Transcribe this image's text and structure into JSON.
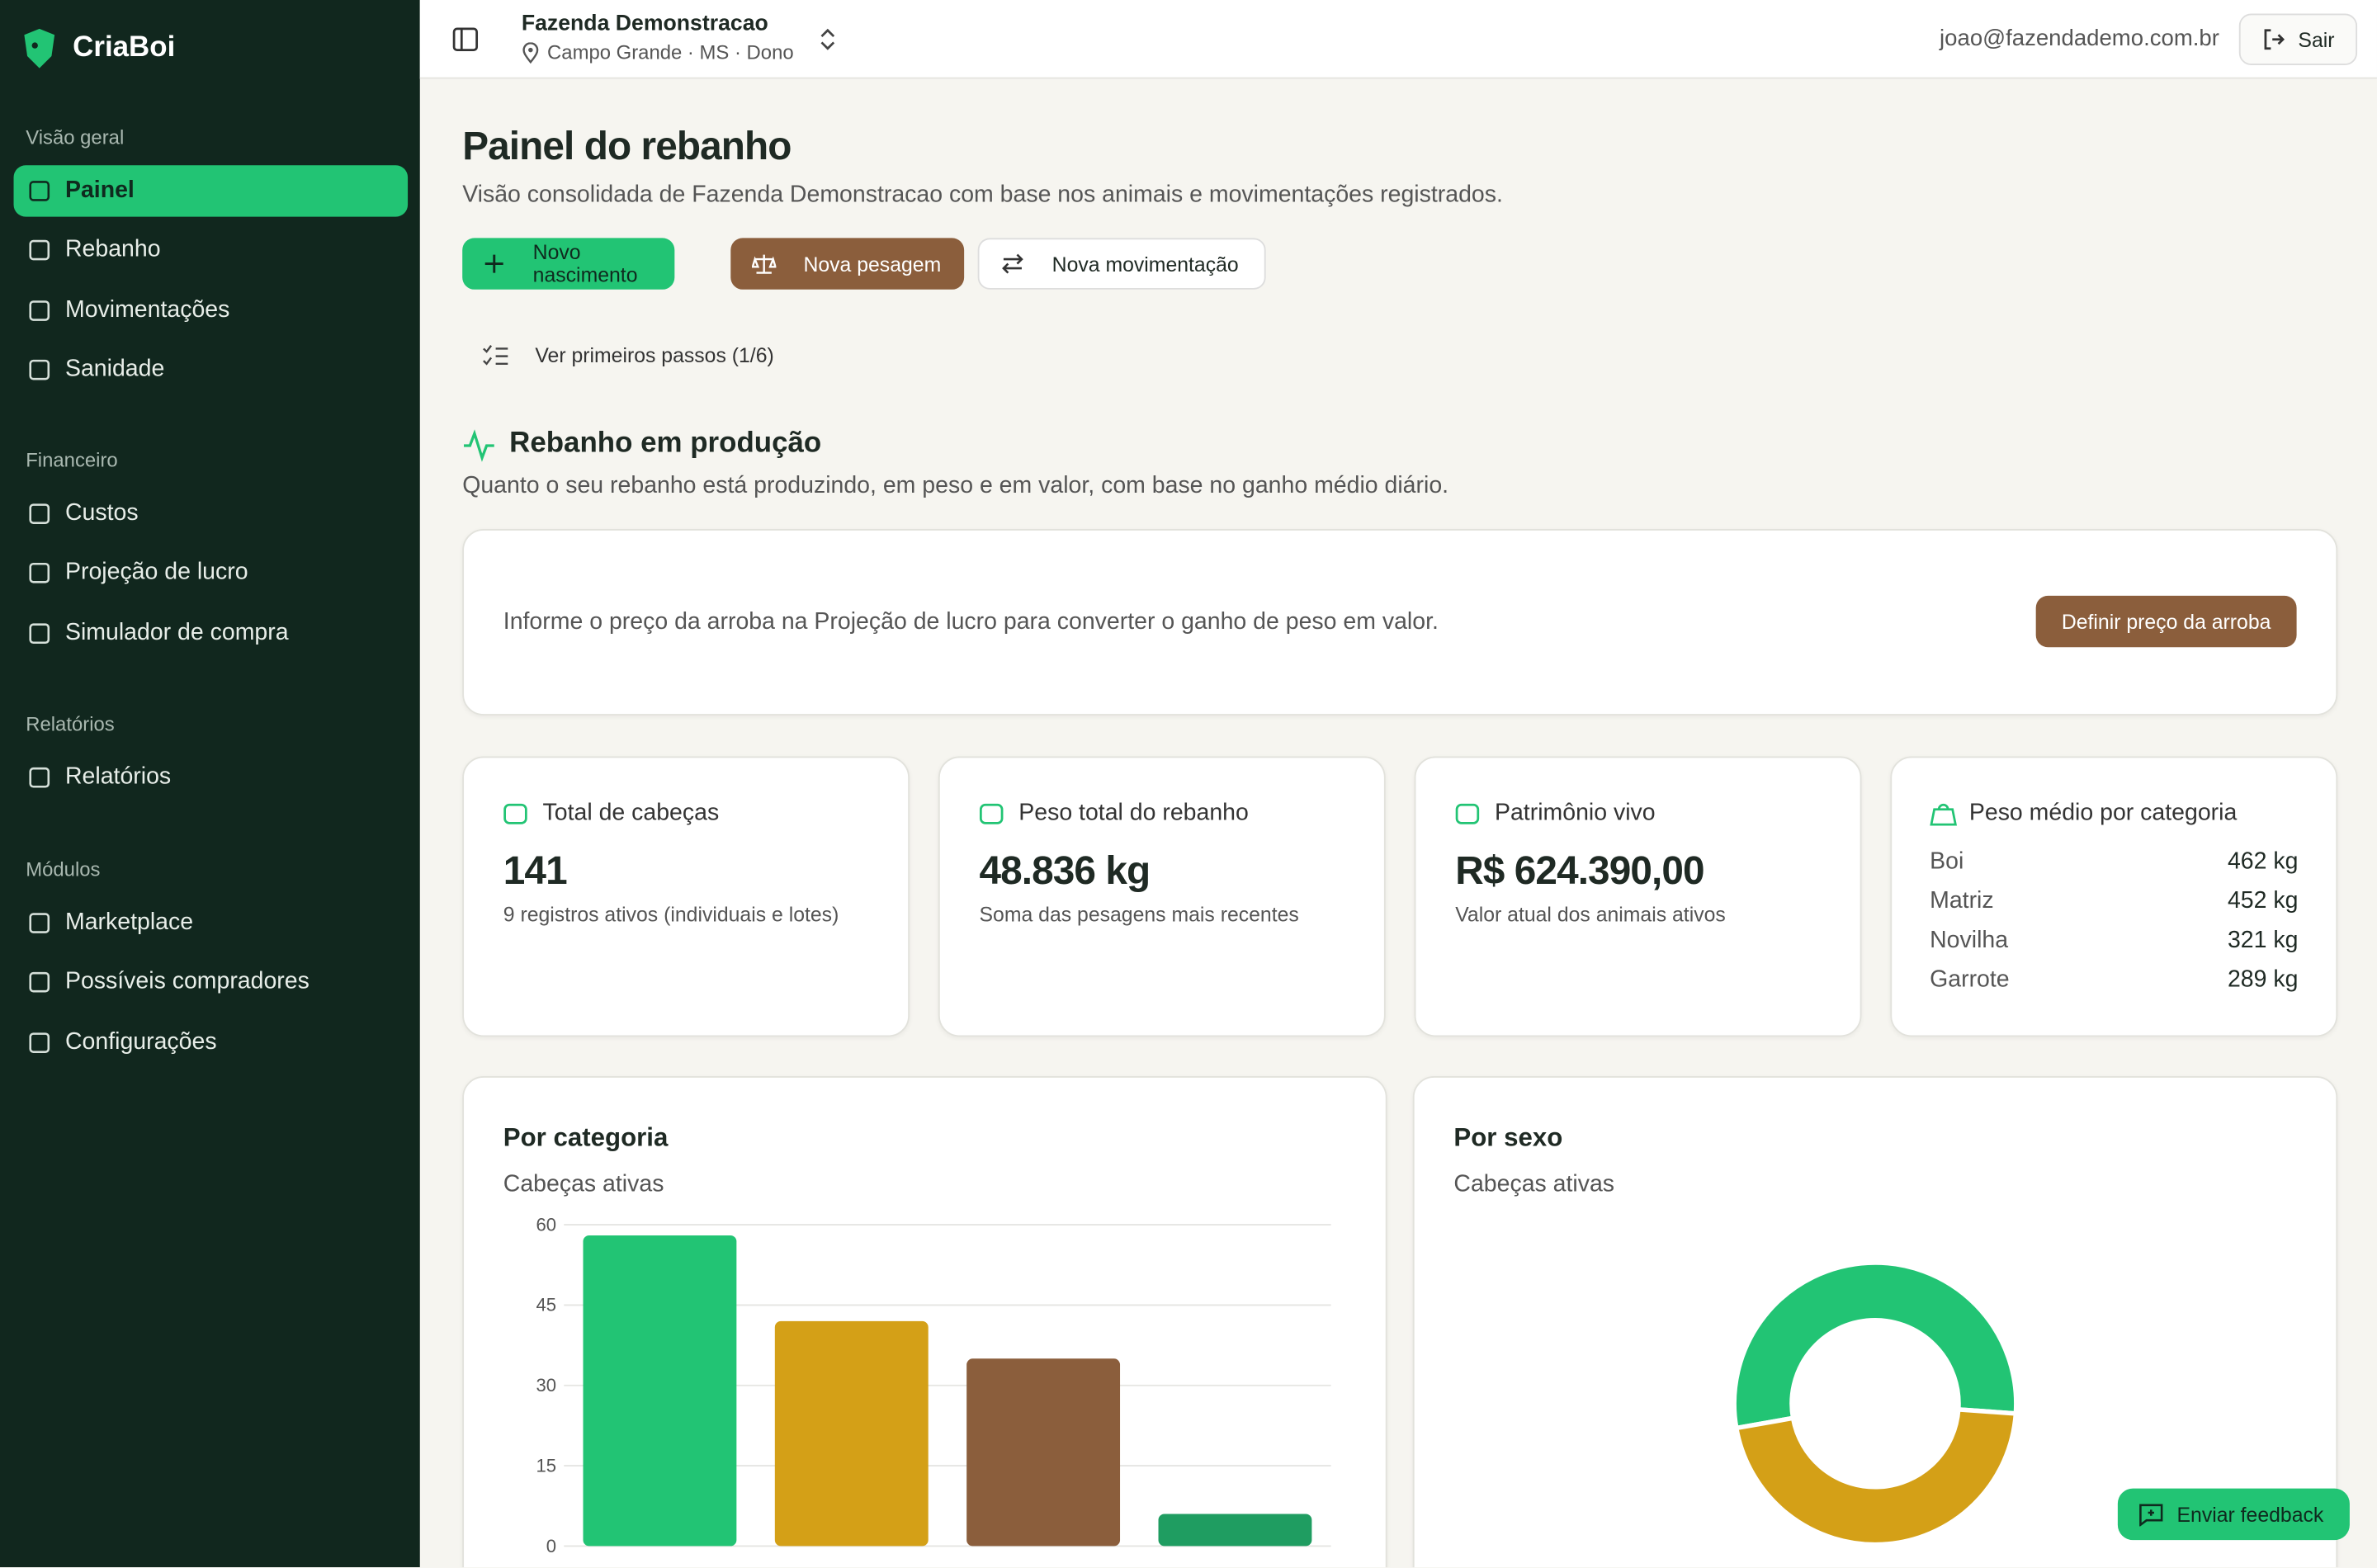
{
  "brand": "CriaBoi",
  "sidebar": {
    "sections": [
      {
        "title": "Visão geral",
        "items": [
          "Painel",
          "Rebanho",
          "Movimentações",
          "Sanidade"
        ]
      },
      {
        "title": "Financeiro",
        "items": [
          "Custos",
          "Projeção de lucro",
          "Simulador de compra"
        ]
      },
      {
        "title": "Relatórios",
        "items": [
          "Relatórios"
        ]
      },
      {
        "title": "Módulos",
        "items": [
          "Marketplace",
          "Possíveis compradores",
          "Configurações"
        ]
      }
    ]
  },
  "header": {
    "farm": "Fazenda Demonstracao",
    "location": "Campo Grande · MS · Dono",
    "email": "joao@fazendademo.com.br",
    "logout": "Sair"
  },
  "page": {
    "title": "Painel do rebanho",
    "subtitle": "Visão consolidada de Fazenda Demonstracao com base nos animais e movimentações registrados.",
    "actions": [
      "Novo nascimento",
      "Nova pesagem",
      "Nova movimentação"
    ],
    "steps": "Ver primeiros passos (1/6)"
  },
  "production": {
    "title": "Rebanho em produção",
    "subtitle": "Quanto o seu rebanho está produzindo, em peso e em valor, com base no ganho médio diário.",
    "notice": "Informe o preço da arroba na Projeção de lucro para converter o ganho de peso em valor.",
    "button": "Definir preço da arroba"
  },
  "stats": [
    {
      "label": "Total de cabeças",
      "value": "141",
      "note": "9 registros ativos (individuais e lotes)"
    },
    {
      "label": "Peso total do rebanho",
      "value": "48.836 kg",
      "note": "Soma das pesagens mais recentes"
    },
    {
      "label": "Patrimônio vivo",
      "value": "R$ 624.390,00",
      "note": "Valor atual dos animais ativos"
    }
  ],
  "weights": {
    "title": "Peso médio por categoria",
    "rows": [
      [
        "Boi",
        "462 kg"
      ],
      [
        "Matriz",
        "452 kg"
      ],
      [
        "Novilha",
        "321 kg"
      ],
      [
        "Garrote",
        "289 kg"
      ]
    ]
  },
  "chart_data": [
    {
      "type": "bar",
      "title": "Por categoria",
      "subtitle": "Cabeças ativas",
      "categories": [
        null,
        null,
        null,
        null
      ],
      "values": [
        58,
        42,
        35,
        6
      ],
      "colors": [
        "#22c474",
        "#d4a017",
        "#8b5e3c",
        "#1f9d61"
      ],
      "ylim": [
        0,
        60
      ],
      "yticks": [
        0,
        15,
        30,
        45,
        60
      ],
      "grid": true
    },
    {
      "type": "pie",
      "title": "Por sexo",
      "subtitle": "Cabeças ativas",
      "categories": [
        null,
        null
      ],
      "values": [
        76,
        65
      ],
      "colors": [
        "#22c474",
        "#d4a017"
      ],
      "donut": true
    }
  ],
  "feedback": "Enviar feedback"
}
